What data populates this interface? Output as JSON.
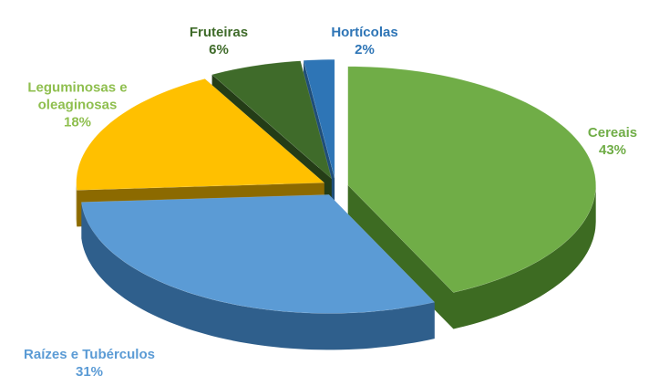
{
  "chart_data": {
    "type": "pie",
    "three_d": true,
    "exploded": true,
    "categories": [
      "Cereais",
      "Raízes e Tubérculos",
      "Leguminosas e oleaginosas",
      "Fruteiras",
      "Hortícolas"
    ],
    "values": [
      43,
      31,
      18,
      6,
      2
    ],
    "value_labels": [
      "43%",
      "31%",
      "18%",
      "6%",
      "2%"
    ],
    "colors": [
      "#70ad47",
      "#5b9bd5",
      "#ffc000",
      "#3f6b2a",
      "#2e75b6"
    ],
    "side_colors": [
      "#3d6b22",
      "#2f5f8c",
      "#8c6a00",
      "#243d17",
      "#1f4e79"
    ],
    "label_colors": [
      "#70ad47",
      "#5b9bd5",
      "#8fbf4f",
      "#3f6b2a",
      "#2e75b6"
    ]
  }
}
